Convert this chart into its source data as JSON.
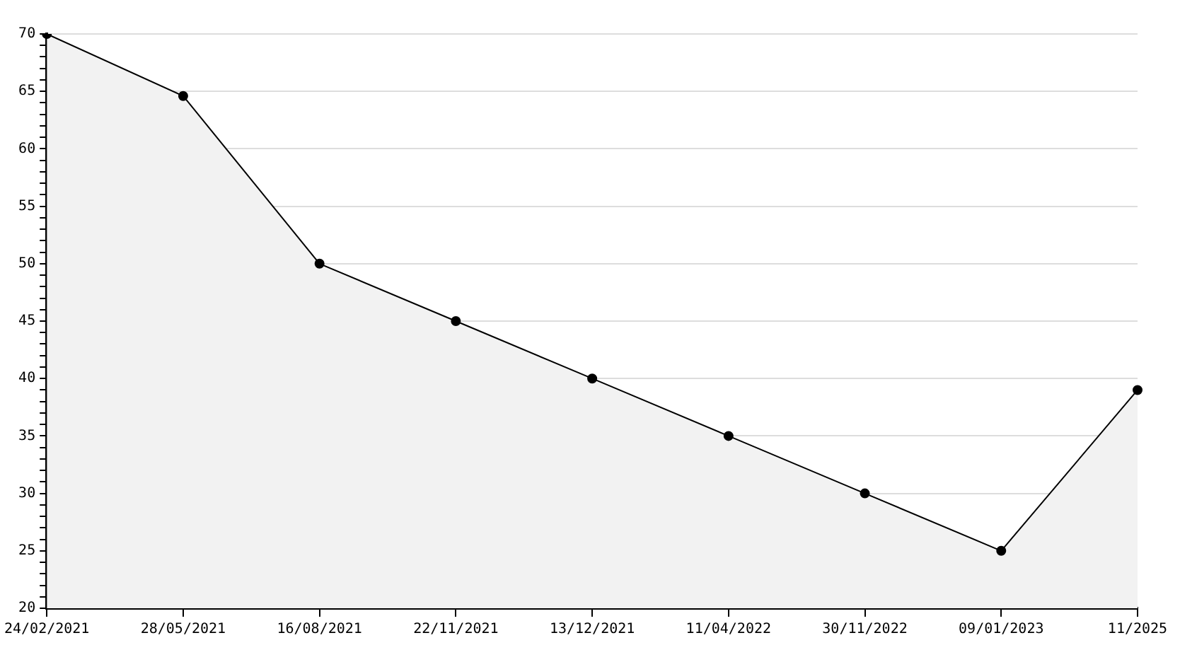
{
  "chart_data": {
    "type": "area",
    "categories": [
      "24/02/2021",
      "28/05/2021",
      "16/08/2021",
      "22/11/2021",
      "13/12/2021",
      "11/04/2022",
      "30/11/2022",
      "09/01/2023",
      "11/2025"
    ],
    "series": [
      {
        "color": "#000000",
        "values": [
          70,
          64.6,
          50,
          45,
          40,
          35,
          30,
          25,
          39
        ]
      }
    ],
    "ylim": [
      20,
      70
    ],
    "yticks": [
      20,
      {
        "value": 21,
        "label": null
      },
      {
        "value": 22,
        "label": null
      },
      {
        "value": 23,
        "label": null
      },
      {
        "value": 24,
        "label": null
      },
      25,
      {
        "value": 26,
        "label": null
      },
      {
        "value": 27,
        "label": null
      },
      {
        "value": 28,
        "label": null
      },
      {
        "value": 29,
        "label": null
      },
      30,
      {
        "value": 31,
        "label": null
      },
      {
        "value": 32,
        "label": null
      },
      {
        "value": 33,
        "label": null
      },
      {
        "value": 34,
        "label": null
      },
      35,
      {
        "value": 36,
        "label": null
      },
      {
        "value": 37,
        "label": null
      },
      {
        "value": 38,
        "label": null
      },
      {
        "value": 39,
        "label": null
      },
      40,
      {
        "value": 41,
        "label": null
      },
      {
        "value": 42,
        "label": null
      },
      {
        "value": 43,
        "label": null
      },
      {
        "value": 44,
        "label": null
      },
      45,
      {
        "value": 46,
        "label": null
      },
      {
        "value": 47,
        "label": null
      },
      {
        "value": 48,
        "label": null
      },
      {
        "value": 49,
        "label": null
      },
      50,
      {
        "value": 51,
        "label": null
      },
      {
        "value": 52,
        "label": null
      },
      {
        "value": 53,
        "label": null
      },
      {
        "value": 54,
        "label": null
      },
      55,
      {
        "value": 56,
        "label": null
      },
      {
        "value": 57,
        "label": null
      },
      {
        "value": 58,
        "label": null
      },
      {
        "value": 59,
        "label": null
      },
      60,
      {
        "value": 61,
        "label": null
      },
      {
        "value": 62,
        "label": null
      },
      {
        "value": 63,
        "label": null
      },
      {
        "value": 64,
        "label": null
      },
      65,
      {
        "value": 66,
        "label": null
      },
      {
        "value": 67,
        "label": null
      },
      {
        "value": 68,
        "label": null
      },
      {
        "value": 69,
        "label": null
      },
      70
    ],
    "grid": "y",
    "marker": "circle",
    "legend": false
  }
}
